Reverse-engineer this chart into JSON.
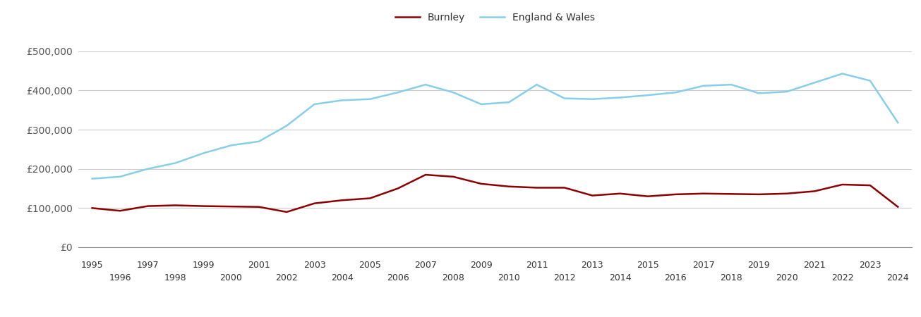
{
  "burnley_years": [
    1995,
    1996,
    1997,
    1998,
    1999,
    2000,
    2001,
    2002,
    2003,
    2004,
    2005,
    2006,
    2007,
    2008,
    2009,
    2010,
    2011,
    2012,
    2013,
    2014,
    2015,
    2016,
    2017,
    2018,
    2019,
    2020,
    2021,
    2022,
    2023,
    2024
  ],
  "burnley_values": [
    100000,
    93000,
    105000,
    107000,
    105000,
    104000,
    103000,
    90000,
    112000,
    120000,
    125000,
    150000,
    185000,
    180000,
    162000,
    155000,
    152000,
    152000,
    132000,
    137000,
    130000,
    135000,
    137000,
    136000,
    135000,
    137000,
    143000,
    160000,
    158000,
    103000
  ],
  "england_years": [
    1995,
    1996,
    1997,
    1998,
    1999,
    2000,
    2001,
    2002,
    2003,
    2004,
    2005,
    2006,
    2007,
    2008,
    2009,
    2010,
    2011,
    2012,
    2013,
    2014,
    2015,
    2016,
    2017,
    2018,
    2019,
    2020,
    2021,
    2022,
    2023,
    2024
  ],
  "england_values": [
    175000,
    180000,
    200000,
    215000,
    240000,
    260000,
    270000,
    310000,
    365000,
    375000,
    378000,
    395000,
    415000,
    395000,
    365000,
    370000,
    415000,
    380000,
    378000,
    382000,
    388000,
    395000,
    412000,
    415000,
    393000,
    397000,
    420000,
    443000,
    425000,
    318000
  ],
  "burnley_color": "#8B0000",
  "england_color": "#87CEEB",
  "burnley_label": "Burnley",
  "england_label": "England & Wales",
  "ylim": [
    0,
    550000
  ],
  "yticks": [
    0,
    100000,
    200000,
    300000,
    400000,
    500000
  ],
  "ytick_labels": [
    "£0",
    "£100,000",
    "£200,000",
    "£300,000",
    "£400,000",
    "£500,000"
  ],
  "xticks_row1": [
    1995,
    1997,
    1999,
    2001,
    2003,
    2005,
    2007,
    2009,
    2011,
    2013,
    2015,
    2017,
    2019,
    2021,
    2023
  ],
  "xticks_row2": [
    1996,
    1998,
    2000,
    2002,
    2004,
    2006,
    2008,
    2010,
    2012,
    2014,
    2016,
    2018,
    2020,
    2022,
    2024
  ],
  "background_color": "#ffffff",
  "grid_color": "#cccccc",
  "line_width": 1.8
}
